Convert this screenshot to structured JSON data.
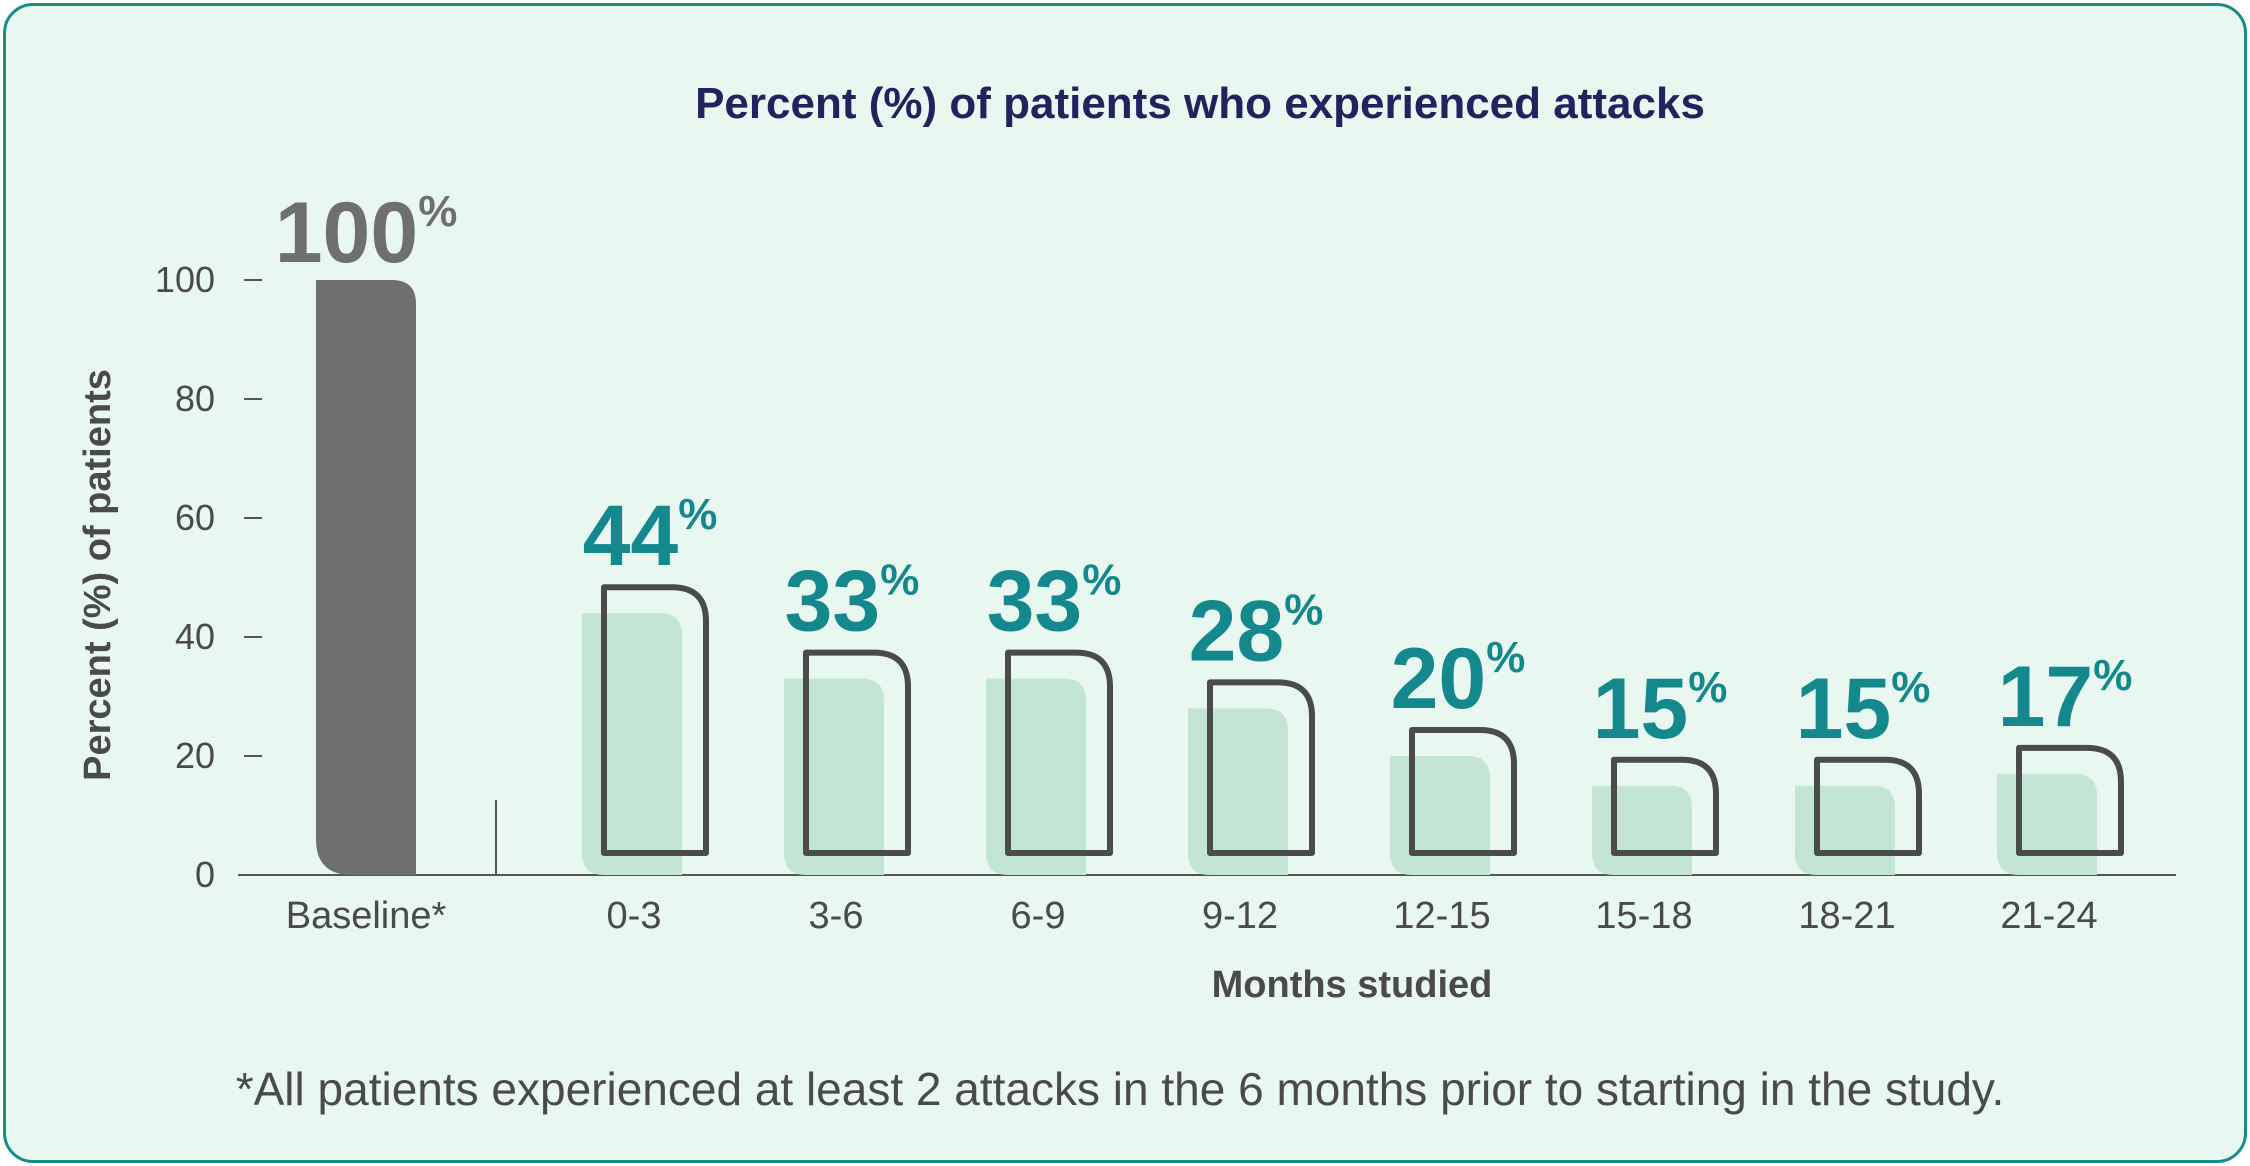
{
  "chart_data": {
    "type": "bar",
    "title": "Percent (%) of patients who experienced attacks",
    "ylabel": "Percent (%) of patients",
    "xlabel": "Months studied",
    "ylim": [
      0,
      100
    ],
    "yticks": [
      0,
      20,
      40,
      60,
      80,
      100
    ],
    "categories": [
      "Baseline*",
      "0-3",
      "3-6",
      "6-9",
      "9-12",
      "12-15",
      "15-18",
      "18-21",
      "21-24"
    ],
    "values": [
      100,
      44,
      33,
      33,
      28,
      20,
      15,
      15,
      17
    ],
    "value_labels": [
      "100",
      "44",
      "33",
      "33",
      "28",
      "20",
      "15",
      "15",
      "17"
    ],
    "value_suffix": "%",
    "colors": {
      "baseline_bar": "#6f6f6f",
      "study_bar_fill": "#c3e5d4",
      "study_bar_outline": "#4b4b4b",
      "study_value_text": "#14888c",
      "baseline_value_text": "#6f6f6f"
    }
  },
  "footnote": "*All patients experienced at least 2 attacks in the 6 months prior to starting in the study."
}
